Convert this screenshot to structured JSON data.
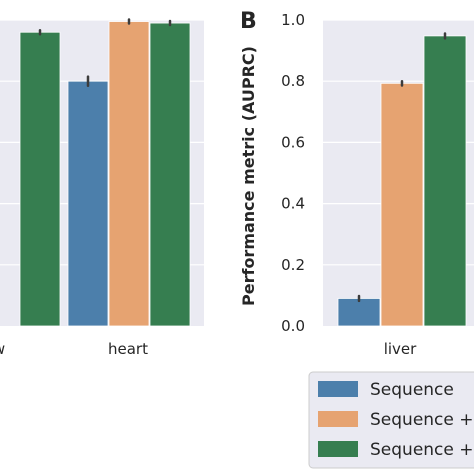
{
  "panel_label": "B",
  "chart_data": [
    {
      "type": "bar",
      "categories": [
        "w",
        "heart"
      ],
      "series": [
        {
          "name": "Sequence",
          "values": [
            null,
            0.8
          ],
          "errors": [
            null,
            0.015
          ],
          "color": "#4c7fab"
        },
        {
          "name": "Sequence +",
          "values": [
            null,
            0.995
          ],
          "errors": [
            null,
            0.006
          ],
          "color": "#e6a371"
        },
        {
          "name": "Sequence +",
          "values": [
            0.96,
            0.99
          ],
          "errors": [
            0.005,
            0.0
          ],
          "color": "#367e50"
        }
      ],
      "ylim": [
        0,
        1.0
      ],
      "grid": true
    },
    {
      "type": "bar",
      "categories": [
        "liver"
      ],
      "series": [
        {
          "name": "Sequence",
          "values": [
            0.09
          ],
          "errors": [
            0.008
          ],
          "color": "#4c7fab"
        },
        {
          "name": "Sequence +",
          "values": [
            0.793
          ],
          "errors": [
            0.007
          ],
          "color": "#e6a371"
        },
        {
          "name": "Sequence +",
          "values": [
            0.948
          ],
          "errors": [
            0.008
          ],
          "color": "#367e50"
        }
      ],
      "ylabel": "Performance metric (AUPRC)",
      "yticks": [
        "0.0",
        "0.2",
        "0.4",
        "0.6",
        "0.8",
        "1.0"
      ],
      "ylim": [
        0,
        1.0
      ],
      "grid": true
    }
  ],
  "legend": {
    "position": "bottom-right",
    "items": [
      {
        "label": "Sequence",
        "color": "#4c7fab"
      },
      {
        "label": "Sequence +",
        "color": "#e6a371"
      },
      {
        "label": "Sequence +",
        "color": "#367e50"
      }
    ]
  },
  "colors": {
    "plot_bg": "#eaeaf2",
    "grid": "#ffffff",
    "error_bar": "#3c3c3c"
  }
}
